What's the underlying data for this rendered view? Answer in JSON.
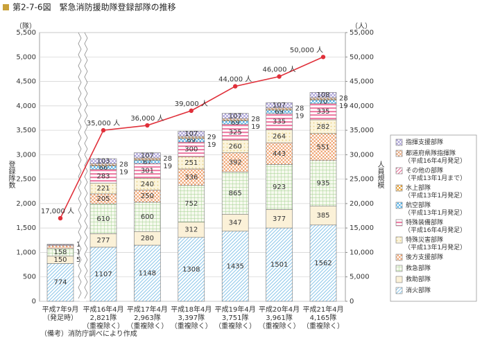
{
  "chart_data": {
    "type": "bar",
    "title": "第2-7-6図　緊急消防援助隊登録部隊の推移",
    "footnote": "（備考）消防庁調べにより作成",
    "y_unit": "（隊）",
    "y2_unit": "（人）",
    "y_label": "登録隊数",
    "y2_label": "人員規模",
    "categories": [
      [
        "平成7年9月",
        "（発足時）"
      ],
      [
        "平成16年4月",
        "2,821隊",
        "（重複除く）"
      ],
      [
        "平成17年4月",
        "2,963隊",
        "（重複除く）"
      ],
      [
        "平成18年4月",
        "3,397隊",
        "（重複除く）"
      ],
      [
        "平成19年4月",
        "3,751隊",
        "（重複除く）"
      ],
      [
        "平成20年4月",
        "3,961隊",
        "（重複除く）"
      ],
      [
        "平成21年4月",
        "4,165隊",
        "（重複除く）"
      ]
    ],
    "series": [
      {
        "name": "消火部隊",
        "color": "#8ec8ea",
        "pattern": "diagonal",
        "values": [
          774,
          1107,
          1148,
          1308,
          1435,
          1501,
          1562
        ]
      },
      {
        "name": "救助部隊",
        "color": "#fbf1d8",
        "pattern": "plain",
        "values": [
          150,
          277,
          280,
          312,
          347,
          377,
          385
        ]
      },
      {
        "name": "救急部隊",
        "color": "#9fd08a",
        "pattern": "grid",
        "values": [
          158,
          610,
          600,
          752,
          865,
          923,
          935
        ]
      },
      {
        "name": "後方支援部隊",
        "color": "#f0a878",
        "pattern": "checker",
        "values": [
          55,
          205,
          250,
          336,
          392,
          443,
          551
        ]
      },
      {
        "name": "特殊災害部隊",
        "note": "（平成13年1月発足）",
        "color": "#e8cf80",
        "pattern": "dots",
        "values": [
          null,
          221,
          240,
          251,
          260,
          264,
          282
        ]
      },
      {
        "name": "特殊装備部隊",
        "note": "（平成16年4月発足）",
        "color": "#ee7fa6",
        "pattern": "hstripe",
        "values": [
          null,
          283,
          301,
          300,
          325,
          335,
          335
        ]
      },
      {
        "name": "航空部隊",
        "note": "（平成13年1月発足）",
        "color": "#58b4ea",
        "pattern": "checker",
        "values": [
          null,
          66,
          67,
          69,
          69,
          69,
          70
        ]
      },
      {
        "name": "水上部隊",
        "note": "（平成13年1月発足）",
        "color": "#e9a030",
        "pattern": "checker",
        "values": [
          null,
          19,
          19,
          19,
          19,
          19,
          19
        ]
      },
      {
        "name": "その他の部隊",
        "note": "（平成13年1月まで）",
        "color": "#e86a94",
        "pattern": "diagonal",
        "values": [
          17,
          null,
          null,
          null,
          null,
          null,
          null
        ]
      },
      {
        "name": "都道府県隊指揮隊",
        "note": "（平成16年4月発足）",
        "color": "#e39a6a",
        "pattern": "crosshatch",
        "values": [
          null,
          28,
          28,
          29,
          28,
          28,
          28
        ]
      },
      {
        "name": "指揮支援部隊",
        "color": "#9b8fd0",
        "pattern": "crosshatch",
        "values": [
          13,
          103,
          107,
          107,
          107,
          107,
          108
        ]
      }
    ],
    "line_series": {
      "axis": "y2",
      "color": "#e0303a",
      "values": [
        17000,
        35000,
        36000,
        39000,
        44000,
        46000,
        50000
      ],
      "value_labels": [
        "17,000 人",
        "35,000 人",
        "36,000 人",
        "39,000 人",
        "44,000 人",
        "46,000 人",
        "50,000 人"
      ]
    },
    "ylim": [
      0,
      5500
    ],
    "yticks": [
      0,
      500,
      {
        "value": 1000,
        "label": "1,000"
      },
      {
        "value": 1500,
        "label": "1,500"
      },
      {
        "value": 2000,
        "label": "2,000"
      },
      {
        "value": 2500,
        "label": "2,500"
      },
      {
        "value": 3000,
        "label": "3,000"
      },
      {
        "value": 3500,
        "label": "3,500"
      },
      {
        "value": 4000,
        "label": "4,000"
      },
      {
        "value": 4500,
        "label": "4,500"
      },
      {
        "value": 5000,
        "label": "5,000"
      },
      {
        "value": 5500,
        "label": "5,500"
      }
    ],
    "y2lim": [
      0,
      55000
    ],
    "y2ticks": [
      0,
      {
        "value": 5000,
        "label": "5,000"
      },
      {
        "value": 10000,
        "label": "10,000"
      },
      {
        "value": 15000,
        "label": "15,000"
      },
      {
        "value": 20000,
        "label": "20,000"
      },
      {
        "value": 25000,
        "label": "25,000"
      },
      {
        "value": 30000,
        "label": "30,000"
      },
      {
        "value": 35000,
        "label": "35,000"
      },
      {
        "value": 40000,
        "label": "40,000"
      },
      {
        "value": 45000,
        "label": "45,000"
      },
      {
        "value": 50000,
        "label": "50,000"
      },
      {
        "value": 55000,
        "label": "55,000"
      }
    ],
    "grid": true
  }
}
